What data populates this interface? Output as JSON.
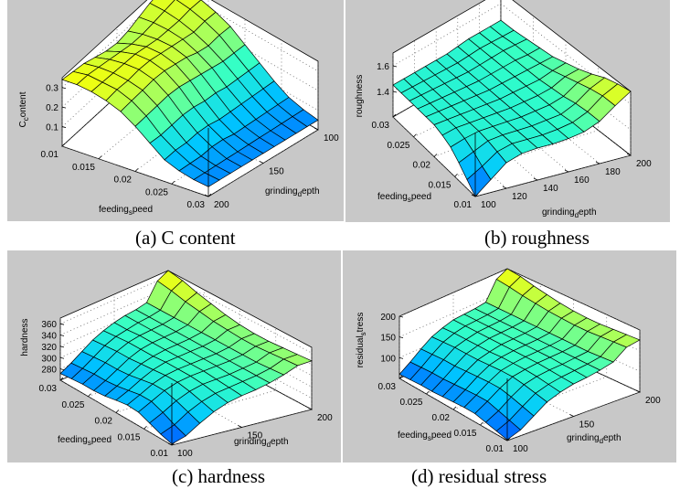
{
  "figure": {
    "captions": {
      "a": "(a) C content",
      "b": "(b) roughness",
      "c": "(c)  hardness",
      "d": "(d) residual stress"
    }
  },
  "chart_data": [
    {
      "id": "a",
      "type": "surface",
      "title": "",
      "caption": "(a) C content",
      "xlabel": "feeding_speed",
      "ylabel": "grinding_depth",
      "zlabel": "C_content",
      "xlabel_display": [
        "feeding",
        "s",
        "peed"
      ],
      "ylabel_display": [
        "grinding",
        "d",
        "epth"
      ],
      "zlabel_display": [
        "C",
        "c",
        "ontent"
      ],
      "x_range": [
        0.01,
        0.03
      ],
      "y_range": [
        100,
        200
      ],
      "z_range": [
        0.0,
        0.35
      ],
      "x_ticks": [
        0.01,
        0.015,
        0.02,
        0.025,
        0.03
      ],
      "x_tick_labels": [
        "0.01",
        "0.015",
        "0.02",
        "0.025",
        "0.03"
      ],
      "y_ticks": [
        100,
        150,
        200
      ],
      "y_tick_labels": [
        "100",
        "150",
        "200"
      ],
      "z_ticks": [
        0.1,
        0.2,
        0.3
      ],
      "z_tick_labels": [
        "0.1",
        "0.2",
        "0.3"
      ],
      "view": "feed-left-depth-right-reversed",
      "colormap": "winter-to-yellow",
      "x": [
        0.01,
        0.012,
        0.014,
        0.016,
        0.018,
        0.02,
        0.022,
        0.024,
        0.026,
        0.028,
        0.03
      ],
      "y": [
        100,
        110,
        120,
        130,
        140,
        150,
        160,
        170,
        180,
        190,
        200
      ],
      "z": [
        [
          0.33,
          0.33,
          0.32,
          0.3,
          0.27,
          0.22,
          0.17,
          0.12,
          0.08,
          0.06,
          0.05
        ],
        [
          0.33,
          0.33,
          0.32,
          0.3,
          0.27,
          0.22,
          0.17,
          0.12,
          0.08,
          0.06,
          0.05
        ],
        [
          0.32,
          0.32,
          0.31,
          0.29,
          0.26,
          0.22,
          0.17,
          0.12,
          0.08,
          0.06,
          0.05
        ],
        [
          0.3,
          0.31,
          0.31,
          0.3,
          0.27,
          0.23,
          0.17,
          0.12,
          0.08,
          0.06,
          0.05
        ],
        [
          0.28,
          0.3,
          0.31,
          0.31,
          0.29,
          0.24,
          0.18,
          0.12,
          0.08,
          0.06,
          0.05
        ],
        [
          0.27,
          0.3,
          0.32,
          0.32,
          0.3,
          0.25,
          0.18,
          0.12,
          0.08,
          0.06,
          0.05
        ],
        [
          0.28,
          0.31,
          0.33,
          0.33,
          0.31,
          0.26,
          0.19,
          0.13,
          0.09,
          0.06,
          0.05
        ],
        [
          0.3,
          0.32,
          0.33,
          0.33,
          0.31,
          0.26,
          0.19,
          0.13,
          0.09,
          0.06,
          0.05
        ],
        [
          0.32,
          0.33,
          0.33,
          0.32,
          0.3,
          0.25,
          0.18,
          0.12,
          0.08,
          0.06,
          0.05
        ],
        [
          0.33,
          0.34,
          0.33,
          0.32,
          0.29,
          0.24,
          0.17,
          0.12,
          0.08,
          0.06,
          0.05
        ],
        [
          0.34,
          0.34,
          0.33,
          0.31,
          0.28,
          0.23,
          0.17,
          0.11,
          0.08,
          0.06,
          0.05
        ]
      ]
    },
    {
      "id": "b",
      "type": "surface",
      "title": "",
      "caption": "(b) roughness",
      "xlabel": "feeding_speed",
      "ylabel": "grinding_depth",
      "zlabel": "roughness",
      "xlabel_display": [
        "feeding",
        "s",
        "peed"
      ],
      "ylabel_display": [
        "grinding",
        "d",
        "epth"
      ],
      "zlabel_display": [
        "roughness",
        "",
        ""
      ],
      "x_range": [
        0.01,
        0.03
      ],
      "y_range": [
        100,
        200
      ],
      "z_range": [
        1.2,
        1.7
      ],
      "x_ticks": [
        0.01,
        0.015,
        0.02,
        0.025,
        0.03
      ],
      "x_tick_labels": [
        "0.01",
        "0.015",
        "0.02",
        "0.025",
        "0.03"
      ],
      "y_ticks": [
        100,
        120,
        140,
        160,
        180,
        200
      ],
      "y_tick_labels": [
        "100",
        "120",
        "140",
        "160",
        "180",
        "200"
      ],
      "z_ticks": [
        1.4,
        1.6
      ],
      "z_tick_labels": [
        "1.4",
        "1.6"
      ],
      "view": "feed-left-depth-right",
      "colormap": "winter-to-yellow",
      "x": [
        0.01,
        0.012,
        0.014,
        0.016,
        0.018,
        0.02,
        0.022,
        0.024,
        0.026,
        0.028,
        0.03
      ],
      "y": [
        100,
        110,
        120,
        130,
        140,
        150,
        160,
        170,
        180,
        190,
        200
      ],
      "z": [
        [
          1.2,
          1.27,
          1.34,
          1.4,
          1.43,
          1.45,
          1.45,
          1.45,
          1.45,
          1.45,
          1.45
        ],
        [
          1.3,
          1.34,
          1.39,
          1.43,
          1.45,
          1.45,
          1.45,
          1.45,
          1.45,
          1.45,
          1.45
        ],
        [
          1.4,
          1.42,
          1.44,
          1.45,
          1.45,
          1.45,
          1.45,
          1.45,
          1.45,
          1.45,
          1.45
        ],
        [
          1.44,
          1.45,
          1.45,
          1.45,
          1.45,
          1.45,
          1.45,
          1.45,
          1.45,
          1.45,
          1.45
        ],
        [
          1.45,
          1.45,
          1.45,
          1.45,
          1.45,
          1.45,
          1.45,
          1.45,
          1.45,
          1.45,
          1.45
        ],
        [
          1.45,
          1.45,
          1.45,
          1.45,
          1.45,
          1.45,
          1.45,
          1.45,
          1.45,
          1.45,
          1.45
        ],
        [
          1.46,
          1.46,
          1.46,
          1.46,
          1.46,
          1.46,
          1.46,
          1.46,
          1.46,
          1.46,
          1.46
        ],
        [
          1.48,
          1.48,
          1.47,
          1.47,
          1.47,
          1.47,
          1.47,
          1.47,
          1.47,
          1.47,
          1.47
        ],
        [
          1.53,
          1.53,
          1.52,
          1.5,
          1.49,
          1.48,
          1.48,
          1.48,
          1.48,
          1.47,
          1.47
        ],
        [
          1.62,
          1.62,
          1.6,
          1.57,
          1.54,
          1.51,
          1.49,
          1.48,
          1.48,
          1.47,
          1.47
        ],
        [
          1.7,
          1.68,
          1.65,
          1.6,
          1.56,
          1.53,
          1.5,
          1.49,
          1.48,
          1.47,
          1.47
        ]
      ]
    },
    {
      "id": "c",
      "type": "surface",
      "title": "",
      "caption": "(c)  hardness",
      "xlabel": "feeding_speed",
      "ylabel": "grinding_depth",
      "zlabel": "hardness",
      "xlabel_display": [
        "feeding",
        "s",
        "peed"
      ],
      "ylabel_display": [
        "grinding",
        "d",
        "epth"
      ],
      "zlabel_display": [
        "hardness",
        "",
        ""
      ],
      "x_range": [
        0.01,
        0.03
      ],
      "y_range": [
        100,
        200
      ],
      "z_range": [
        260,
        370
      ],
      "x_ticks": [
        0.01,
        0.015,
        0.02,
        0.025,
        0.03
      ],
      "x_tick_labels": [
        "0.01",
        "0.015",
        "0.02",
        "0.025",
        "0.03"
      ],
      "y_ticks": [
        100,
        150,
        200
      ],
      "y_tick_labels": [
        "100",
        "150",
        "200"
      ],
      "z_ticks": [
        280,
        300,
        320,
        340,
        360
      ],
      "z_tick_labels": [
        "280",
        "300",
        "320",
        "340",
        "360"
      ],
      "view": "feed-left-depth-right",
      "colormap": "winter-to-yellow",
      "x": [
        0.01,
        0.012,
        0.014,
        0.016,
        0.018,
        0.02,
        0.022,
        0.024,
        0.026,
        0.028,
        0.03
      ],
      "y": [
        100,
        110,
        120,
        130,
        140,
        150,
        160,
        170,
        180,
        190,
        200
      ],
      "z": [
        [
          262,
          268,
          276,
          284,
          285,
          282,
          278,
          276,
          276,
          274,
          272
        ],
        [
          270,
          278,
          288,
          296,
          296,
          292,
          288,
          286,
          286,
          284,
          282
        ],
        [
          286,
          294,
          302,
          308,
          308,
          304,
          300,
          298,
          298,
          296,
          294
        ],
        [
          300,
          306,
          312,
          316,
          316,
          314,
          312,
          310,
          310,
          308,
          306
        ],
        [
          310,
          314,
          318,
          320,
          320,
          320,
          318,
          318,
          318,
          316,
          314
        ],
        [
          316,
          318,
          320,
          322,
          322,
          322,
          322,
          322,
          322,
          320,
          320
        ],
        [
          320,
          322,
          322,
          324,
          324,
          324,
          324,
          324,
          324,
          324,
          324
        ],
        [
          326,
          326,
          326,
          326,
          326,
          326,
          326,
          326,
          326,
          326,
          326
        ],
        [
          334,
          332,
          330,
          330,
          330,
          330,
          330,
          330,
          330,
          330,
          330
        ],
        [
          344,
          342,
          340,
          338,
          338,
          340,
          342,
          346,
          350,
          356,
          360
        ],
        [
          346,
          344,
          342,
          340,
          340,
          342,
          346,
          352,
          358,
          366,
          370
        ]
      ]
    },
    {
      "id": "d",
      "type": "surface",
      "title": "",
      "caption": "(d) residual stress",
      "xlabel": "feeding_speed",
      "ylabel": "grinding_depth",
      "zlabel": "residual_stress",
      "xlabel_display": [
        "feeding",
        "s",
        "peed"
      ],
      "ylabel_display": [
        "grinding",
        "d",
        "epth"
      ],
      "zlabel_display": [
        "residual",
        "s",
        "tress"
      ],
      "x_range": [
        0.01,
        0.03
      ],
      "y_range": [
        100,
        200
      ],
      "z_range": [
        50,
        200
      ],
      "x_ticks": [
        0.01,
        0.015,
        0.02,
        0.025,
        0.03
      ],
      "x_tick_labels": [
        "0.01",
        "0.015",
        "0.02",
        "0.025",
        "0.03"
      ],
      "y_ticks": [
        100,
        150,
        200
      ],
      "y_tick_labels": [
        "100",
        "150",
        "200"
      ],
      "z_ticks": [
        100,
        150,
        200
      ],
      "z_tick_labels": [
        "100",
        "150",
        "200"
      ],
      "view": "feed-left-depth-right",
      "colormap": "winter-to-yellow",
      "x": [
        0.01,
        0.012,
        0.014,
        0.016,
        0.018,
        0.02,
        0.022,
        0.024,
        0.026,
        0.028,
        0.03
      ],
      "y": [
        100,
        110,
        120,
        130,
        140,
        150,
        160,
        170,
        180,
        190,
        200
      ],
      "z": [
        [
          52,
          58,
          64,
          70,
          70,
          68,
          66,
          64,
          64,
          62,
          60
        ],
        [
          64,
          72,
          80,
          88,
          88,
          86,
          84,
          82,
          82,
          80,
          78
        ],
        [
          86,
          94,
          102,
          108,
          108,
          106,
          104,
          102,
          102,
          100,
          98
        ],
        [
          108,
          114,
          120,
          124,
          124,
          122,
          120,
          120,
          120,
          118,
          116
        ],
        [
          120,
          124,
          128,
          130,
          130,
          130,
          128,
          128,
          128,
          128,
          126
        ],
        [
          128,
          130,
          132,
          134,
          134,
          134,
          134,
          134,
          134,
          134,
          134
        ],
        [
          132,
          134,
          134,
          136,
          136,
          136,
          136,
          136,
          136,
          136,
          136
        ],
        [
          138,
          138,
          138,
          138,
          138,
          138,
          138,
          138,
          138,
          138,
          138
        ],
        [
          146,
          144,
          142,
          142,
          142,
          142,
          142,
          142,
          142,
          142,
          142
        ],
        [
          170,
          168,
          166,
          164,
          164,
          166,
          168,
          172,
          176,
          182,
          186
        ],
        [
          176,
          174,
          172,
          170,
          170,
          172,
          176,
          182,
          188,
          196,
          200
        ]
      ]
    }
  ]
}
